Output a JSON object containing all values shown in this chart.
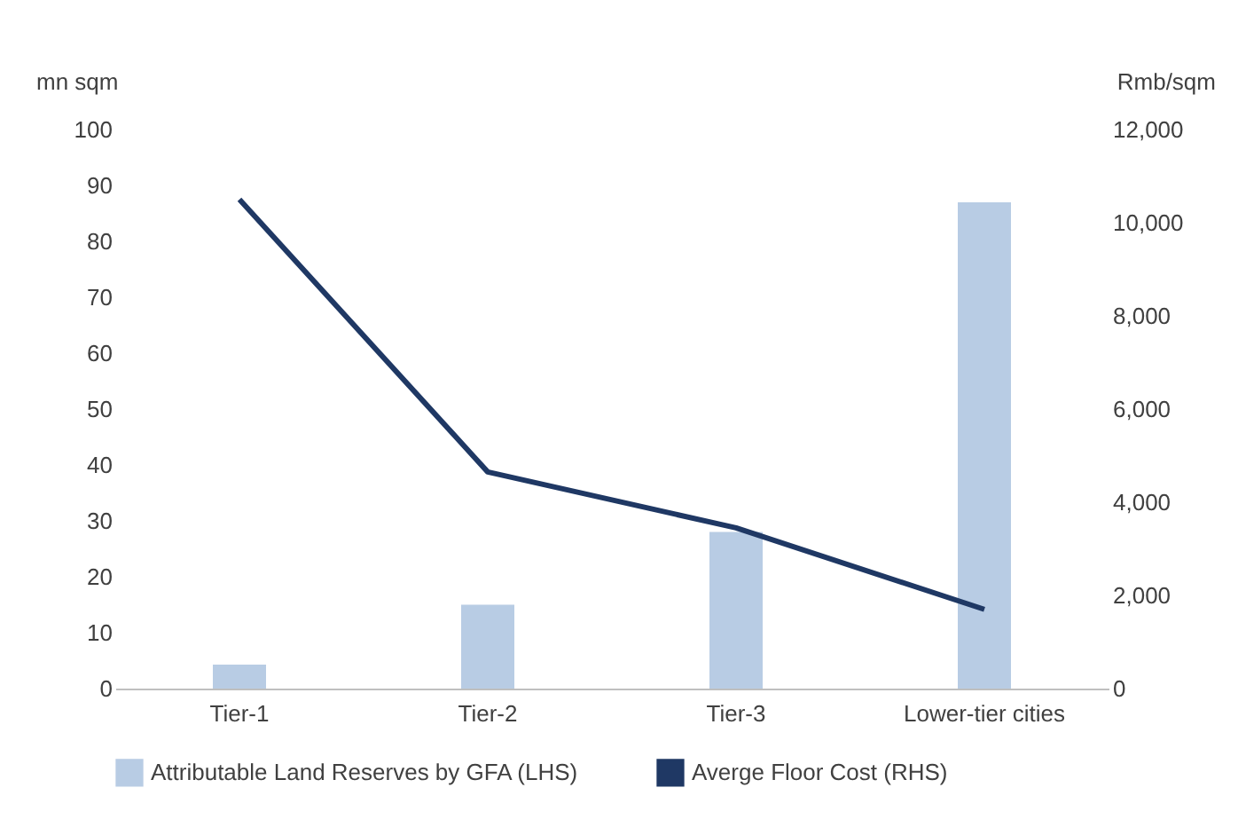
{
  "chart_data": {
    "type": "bar",
    "categories": [
      "Tier-1",
      "Tier-2",
      "Tier-3",
      "Lower-tier cities"
    ],
    "series": [
      {
        "name": "Attributable Land Reserves by GFA (LHS)",
        "color": "#b8cce4",
        "values": [
          4.3,
          15,
          28,
          87
        ]
      },
      {
        "name": "Averge Floor Cost (RHS)",
        "type": "line",
        "axis": "y2",
        "color": "#1f3864",
        "values": [
          10500,
          4650,
          3450,
          1700
        ]
      }
    ],
    "ylabel": "mn sqm",
    "y2label": "Rmb/sqm",
    "ylim": [
      0,
      100
    ],
    "yticks": [
      0,
      10,
      20,
      30,
      40,
      50,
      60,
      70,
      80,
      90,
      100
    ],
    "y2lim": [
      0,
      12000
    ],
    "y2ticks": [
      0,
      {
        "value": 2000,
        "label": "2,000"
      },
      {
        "value": 4000,
        "label": "4,000"
      },
      {
        "value": 6000,
        "label": "6,000"
      },
      {
        "value": 8000,
        "label": "8,000"
      },
      {
        "value": 10000,
        "label": "10,000"
      },
      {
        "value": 12000,
        "label": "12,000"
      }
    ],
    "legend": "bottom",
    "grid": false,
    "marker": "none",
    "line_style": "solid"
  }
}
